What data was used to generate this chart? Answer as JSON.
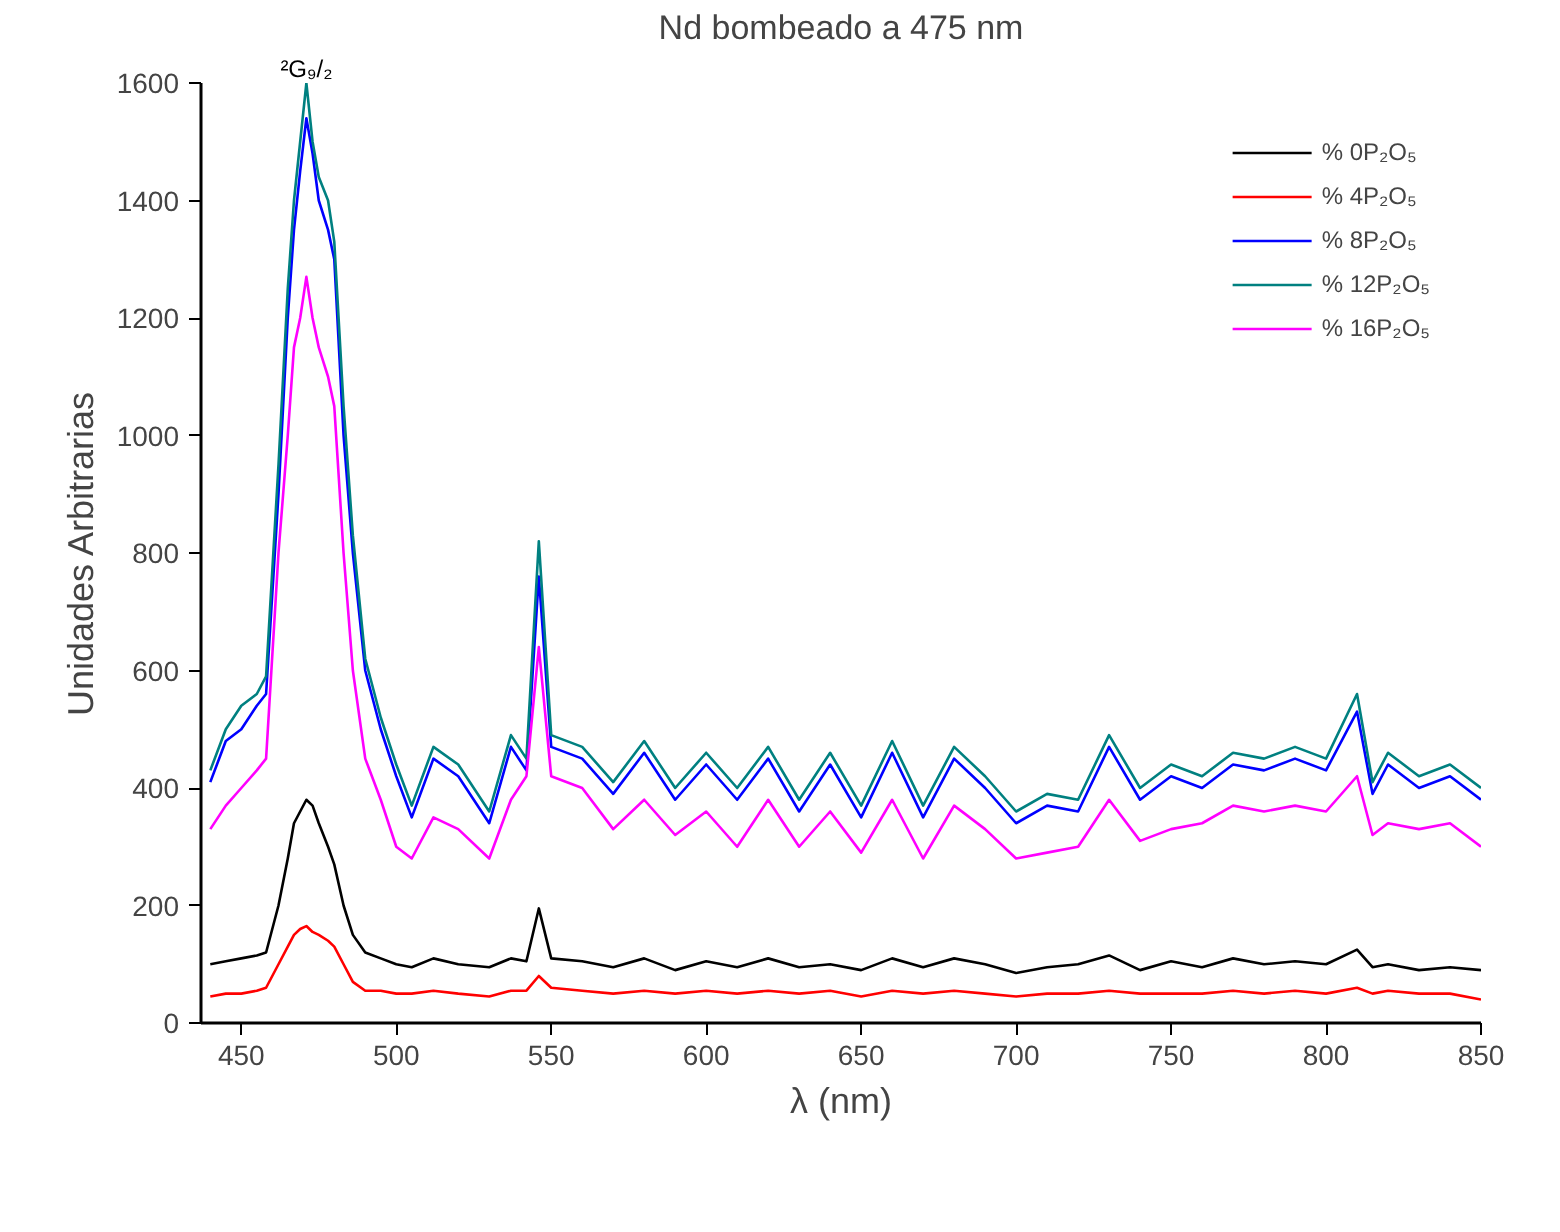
{
  "chart_data": {
    "type": "line",
    "title": "Nd bombeado a 475 nm",
    "xlabel": "λ (nm)",
    "ylabel": "Unidades Arbitrarias",
    "x": [
      440,
      445,
      450,
      455,
      458,
      462,
      465,
      467,
      469,
      471,
      473,
      475,
      478,
      480,
      483,
      486,
      490,
      495,
      500,
      505,
      512,
      520,
      530,
      537,
      542,
      546,
      550,
      560,
      570,
      580,
      590,
      600,
      610,
      620,
      630,
      640,
      650,
      660,
      670,
      680,
      690,
      700,
      710,
      720,
      730,
      740,
      750,
      760,
      770,
      780,
      790,
      800,
      810,
      815,
      820,
      830,
      840,
      850
    ],
    "series": [
      {
        "name": "% 0P₂O₅",
        "color": "#000000",
        "values": [
          100,
          105,
          110,
          115,
          120,
          200,
          280,
          340,
          360,
          380,
          370,
          340,
          300,
          270,
          200,
          150,
          120,
          110,
          100,
          95,
          110,
          100,
          95,
          110,
          105,
          195,
          110,
          105,
          95,
          110,
          90,
          105,
          95,
          110,
          95,
          100,
          90,
          110,
          95,
          110,
          100,
          85,
          95,
          100,
          115,
          90,
          105,
          95,
          110,
          100,
          105,
          100,
          125,
          95,
          100,
          90,
          95,
          90
        ]
      },
      {
        "name": "% 4P₂O₅",
        "color": "#ff0000",
        "values": [
          45,
          50,
          50,
          55,
          60,
          100,
          130,
          150,
          160,
          165,
          155,
          150,
          140,
          130,
          100,
          70,
          55,
          55,
          50,
          50,
          55,
          50,
          45,
          55,
          55,
          80,
          60,
          55,
          50,
          55,
          50,
          55,
          50,
          55,
          50,
          55,
          45,
          55,
          50,
          55,
          50,
          45,
          50,
          50,
          55,
          50,
          50,
          50,
          55,
          50,
          55,
          50,
          60,
          50,
          55,
          50,
          50,
          40
        ]
      },
      {
        "name": "% 8P₂O₅",
        "color": "#0000ff",
        "values": [
          410,
          480,
          500,
          540,
          560,
          900,
          1200,
          1350,
          1450,
          1540,
          1480,
          1400,
          1350,
          1300,
          1000,
          800,
          600,
          500,
          420,
          350,
          450,
          420,
          340,
          470,
          430,
          760,
          470,
          450,
          390,
          460,
          380,
          440,
          380,
          450,
          360,
          440,
          350,
          460,
          350,
          450,
          400,
          340,
          370,
          360,
          470,
          380,
          420,
          400,
          440,
          430,
          450,
          430,
          530,
          390,
          440,
          400,
          420,
          380
        ]
      },
      {
        "name": "% 12P₂O₅",
        "color": "#008080",
        "values": [
          430,
          500,
          540,
          560,
          590,
          950,
          1250,
          1400,
          1500,
          1600,
          1500,
          1440,
          1400,
          1330,
          1050,
          830,
          620,
          520,
          440,
          370,
          470,
          440,
          360,
          490,
          450,
          820,
          490,
          470,
          410,
          480,
          400,
          460,
          400,
          470,
          380,
          460,
          370,
          480,
          370,
          470,
          420,
          360,
          390,
          380,
          490,
          400,
          440,
          420,
          460,
          450,
          470,
          450,
          560,
          410,
          460,
          420,
          440,
          400
        ]
      },
      {
        "name": "% 16P₂O₅",
        "color": "#ff00ff",
        "values": [
          330,
          370,
          400,
          430,
          450,
          800,
          1000,
          1150,
          1200,
          1270,
          1200,
          1150,
          1100,
          1050,
          800,
          600,
          450,
          380,
          300,
          280,
          350,
          330,
          280,
          380,
          420,
          640,
          420,
          400,
          330,
          380,
          320,
          360,
          300,
          380,
          300,
          360,
          290,
          380,
          280,
          370,
          330,
          280,
          290,
          300,
          380,
          310,
          330,
          340,
          370,
          360,
          370,
          360,
          420,
          320,
          340,
          330,
          340,
          300
        ]
      }
    ],
    "annotations": [
      {
        "text": "²G₉/₂",
        "x": 471,
        "y": 1600
      }
    ],
    "xlim": [
      437,
      850
    ],
    "ylim": [
      0,
      1600
    ],
    "xticks": [
      450,
      500,
      550,
      600,
      650,
      700,
      750,
      800,
      850
    ],
    "yticks": [
      0,
      200,
      400,
      600,
      800,
      1000,
      1200,
      1400,
      1600
    ],
    "grid": false,
    "legend": "top right",
    "marker": "none",
    "line_style": "solid"
  }
}
